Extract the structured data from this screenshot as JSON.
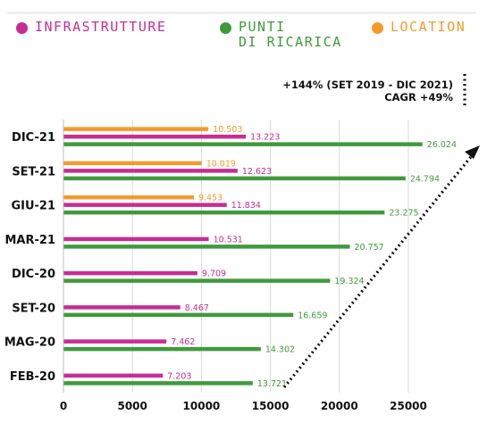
{
  "legend": [
    {
      "name": "INFRASTRUTTURE",
      "color": "#c72d94"
    },
    {
      "name": "PUNTI\nDI RICARICA",
      "color": "#3f9a3c"
    },
    {
      "name": "LOCATION",
      "color": "#f49a2b"
    }
  ],
  "annotation": {
    "line1": "+144% (SET 2019 - DIC 2021)",
    "line2": "CAGR +49%"
  },
  "chart_data": {
    "type": "bar",
    "orientation": "horizontal",
    "categories": [
      "DIC-21",
      "SET-21",
      "GIU-21",
      "MAR-21",
      "DIC-20",
      "SET-20",
      "MAG-20",
      "FEB-20"
    ],
    "series": [
      {
        "name": "LOCATION",
        "color": "#f49a2b",
        "values": [
          10503,
          10019,
          9453,
          null,
          null,
          null,
          null,
          null
        ],
        "labels": [
          "10.503",
          "10.019",
          "9.453",
          "",
          "",
          "",
          "",
          ""
        ]
      },
      {
        "name": "INFRASTRUTTURE",
        "color": "#c72d94",
        "values": [
          13223,
          12623,
          11834,
          10531,
          9709,
          8467,
          7462,
          7203
        ],
        "labels": [
          "13.223",
          "12.623",
          "11.834",
          "10.531",
          "9.709",
          "8.467",
          "7.462",
          "7.203"
        ]
      },
      {
        "name": "PUNTI DI RICARICA",
        "color": "#3f9a3c",
        "values": [
          26024,
          24794,
          23275,
          20757,
          19324,
          16659,
          14302,
          13721
        ],
        "labels": [
          "26.024",
          "24.794",
          "23.275",
          "20.757",
          "19.324",
          "16.659",
          "14.302",
          "13.721"
        ]
      }
    ],
    "xlim": [
      0,
      25000
    ],
    "xticks": [
      "0",
      "5000",
      "10000",
      "15000",
      "20000",
      "25000"
    ],
    "grid": true
  }
}
